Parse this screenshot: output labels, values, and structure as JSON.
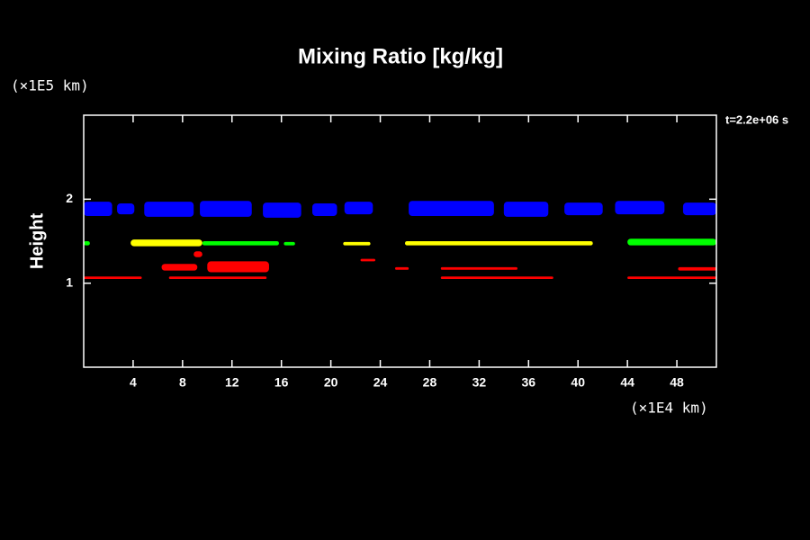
{
  "chart_data": {
    "type": "contour",
    "title": "Mixing Ratio [kg/kg]",
    "y_label": "Height",
    "y_unit": "(×1E5 km)",
    "x_unit": "(×1E4 km)",
    "annotation": "t=2.2e+06 s",
    "xlim": [
      0,
      51.2
    ],
    "xticks": [
      4,
      8,
      12,
      16,
      20,
      24,
      28,
      32,
      36,
      40,
      44,
      48
    ],
    "ylim": [
      0,
      3
    ],
    "yticks": [
      1,
      2
    ],
    "regions": [
      {
        "color": "#0000ff",
        "x": [
          0,
          2.3
        ],
        "y": [
          1.8,
          1.97
        ]
      },
      {
        "color": "#0000ff",
        "x": [
          2.7,
          4.1
        ],
        "y": [
          1.82,
          1.95
        ]
      },
      {
        "color": "#0000ff",
        "x": [
          4.9,
          8.9
        ],
        "y": [
          1.79,
          1.97
        ]
      },
      {
        "color": "#0000ff",
        "x": [
          9.4,
          13.6
        ],
        "y": [
          1.79,
          1.98
        ]
      },
      {
        "color": "#0000ff",
        "x": [
          14.5,
          17.6
        ],
        "y": [
          1.78,
          1.96
        ]
      },
      {
        "color": "#0000ff",
        "x": [
          18.5,
          20.5
        ],
        "y": [
          1.8,
          1.95
        ]
      },
      {
        "color": "#0000ff",
        "x": [
          21.1,
          23.4
        ],
        "y": [
          1.82,
          1.97
        ]
      },
      {
        "color": "#0000ff",
        "x": [
          26.3,
          33.2
        ],
        "y": [
          1.8,
          1.98
        ]
      },
      {
        "color": "#0000ff",
        "x": [
          34,
          37.6
        ],
        "y": [
          1.79,
          1.97
        ]
      },
      {
        "color": "#0000ff",
        "x": [
          38.9,
          42
        ],
        "y": [
          1.81,
          1.96
        ]
      },
      {
        "color": "#0000ff",
        "x": [
          43,
          47
        ],
        "y": [
          1.82,
          1.98
        ]
      },
      {
        "color": "#0000ff",
        "x": [
          48.5,
          51.2
        ],
        "y": [
          1.81,
          1.96
        ]
      },
      {
        "color": "#00ff00",
        "x": [
          0,
          0.5
        ],
        "y": [
          1.45,
          1.5
        ]
      },
      {
        "color": "#ffff00",
        "x": [
          3.8,
          9.6
        ],
        "y": [
          1.44,
          1.52
        ]
      },
      {
        "color": "#00ff00",
        "x": [
          9.6,
          15.8
        ],
        "y": [
          1.45,
          1.5
        ]
      },
      {
        "color": "#00ff00",
        "x": [
          16.2,
          17.1
        ],
        "y": [
          1.45,
          1.49
        ]
      },
      {
        "color": "#ffff00",
        "x": [
          21,
          23.2
        ],
        "y": [
          1.45,
          1.49
        ]
      },
      {
        "color": "#ffff00",
        "x": [
          26,
          41.2
        ],
        "y": [
          1.45,
          1.5
        ]
      },
      {
        "color": "#00ff00",
        "x": [
          44,
          51.2
        ],
        "y": [
          1.45,
          1.53
        ]
      },
      {
        "color": "#ff0000",
        "x": [
          0,
          4.7
        ],
        "y": [
          1.05,
          1.08
        ]
      },
      {
        "color": "#ff0000",
        "x": [
          6.9,
          14.8
        ],
        "y": [
          1.05,
          1.08
        ]
      },
      {
        "color": "#ff0000",
        "x": [
          28.9,
          38
        ],
        "y": [
          1.05,
          1.08
        ]
      },
      {
        "color": "#ff0000",
        "x": [
          44,
          51.2
        ],
        "y": [
          1.05,
          1.08
        ]
      },
      {
        "color": "#ff0000",
        "x": [
          28.9,
          35.1
        ],
        "y": [
          1.16,
          1.19
        ]
      },
      {
        "color": "#ff0000",
        "x": [
          48.1,
          51.2
        ],
        "y": [
          1.15,
          1.19
        ]
      },
      {
        "color": "#ff0000",
        "x": [
          6.3,
          9.2
        ],
        "y": [
          1.15,
          1.23
        ]
      },
      {
        "color": "#ff0000",
        "x": [
          10,
          15
        ],
        "y": [
          1.13,
          1.26
        ]
      },
      {
        "color": "#ff0000",
        "x": [
          8.9,
          9.6
        ],
        "y": [
          1.31,
          1.38
        ]
      },
      {
        "color": "#ff0000",
        "x": [
          22.4,
          23.6
        ],
        "y": [
          1.26,
          1.29
        ]
      },
      {
        "color": "#ff0000",
        "x": [
          25.2,
          26.3
        ],
        "y": [
          1.16,
          1.19
        ]
      }
    ]
  }
}
